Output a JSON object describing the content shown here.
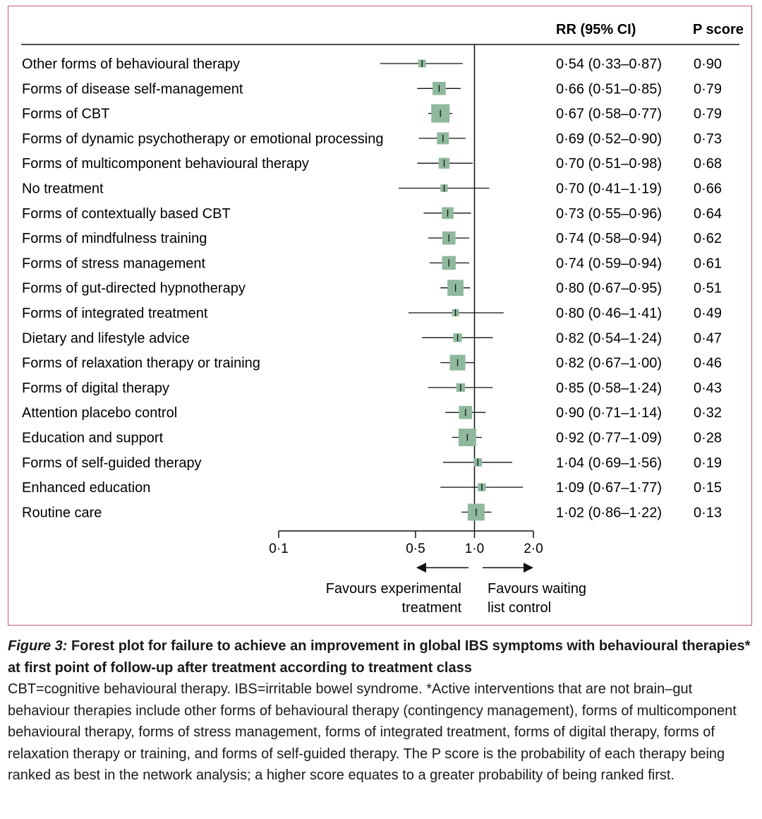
{
  "chart_data": {
    "type": "forest",
    "xscale": "log",
    "xlim": [
      0.1,
      2.0
    ],
    "xticks": [
      0.1,
      0.5,
      1.0,
      2.0
    ],
    "tick_labels": [
      "0·1",
      "0·5",
      "1·0",
      "2·0"
    ],
    "reference_line": 1.0,
    "column_headers": {
      "estimate": "RR (95% CI)",
      "score": "P score"
    },
    "direction_labels": {
      "left_line1": "Favours experimental",
      "left_line2": "treatment",
      "right_line1": "Favours waiting",
      "right_line2": "list control"
    },
    "rows": [
      {
        "label": "Other forms of behavioural therapy",
        "rr": 0.54,
        "lo": 0.33,
        "hi": 0.87,
        "text": "0·54 (0·33–0·87)",
        "p": "0·90",
        "weight": 0.06
      },
      {
        "label": "Forms of disease self-management",
        "rr": 0.66,
        "lo": 0.51,
        "hi": 0.85,
        "text": "0·66 (0·51–0·85)",
        "p": "0·79",
        "weight": 0.4
      },
      {
        "label": "Forms of CBT",
        "rr": 0.67,
        "lo": 0.58,
        "hi": 0.77,
        "text": "0·67 (0·58–0·77)",
        "p": "0·79",
        "weight": 1.0
      },
      {
        "label": "Forms of dynamic psychotherapy or emotional processing",
        "rr": 0.69,
        "lo": 0.52,
        "hi": 0.9,
        "text": "0·69 (0·52–0·90)",
        "p": "0·73",
        "weight": 0.3
      },
      {
        "label": "Forms of multicomponent behavioural therapy",
        "rr": 0.7,
        "lo": 0.51,
        "hi": 0.98,
        "text": "0·70 (0·51–0·98)",
        "p": "0·68",
        "weight": 0.22
      },
      {
        "label": "No treatment",
        "rr": 0.7,
        "lo": 0.41,
        "hi": 1.19,
        "text": "0·70 (0·41–1·19)",
        "p": "0·66",
        "weight": 0.05
      },
      {
        "label": "Forms of contextually based CBT",
        "rr": 0.73,
        "lo": 0.55,
        "hi": 0.96,
        "text": "0·73 (0·55–0·96)",
        "p": "0·64",
        "weight": 0.28
      },
      {
        "label": "Forms of mindfulness training",
        "rr": 0.74,
        "lo": 0.58,
        "hi": 0.94,
        "text": "0·74 (0·58–0·94)",
        "p": "0·62",
        "weight": 0.4
      },
      {
        "label": "Forms of stress management",
        "rr": 0.74,
        "lo": 0.59,
        "hi": 0.94,
        "text": "0·74 (0·59–0·94)",
        "p": "0·61",
        "weight": 0.45
      },
      {
        "label": "Forms of gut-directed hypnotherapy",
        "rr": 0.8,
        "lo": 0.67,
        "hi": 0.95,
        "text": "0·80 (0·67–0·95)",
        "p": "0·51",
        "weight": 0.7
      },
      {
        "label": "Forms of integrated treatment",
        "rr": 0.8,
        "lo": 0.46,
        "hi": 1.41,
        "text": "0·80 (0·46–1·41)",
        "p": "0·49",
        "weight": 0.04
      },
      {
        "label": "Dietary and lifestyle advice",
        "rr": 0.82,
        "lo": 0.54,
        "hi": 1.24,
        "text": "0·82 (0·54–1·24)",
        "p": "0·47",
        "weight": 0.1
      },
      {
        "label": "Forms of relaxation therapy or training",
        "rr": 0.82,
        "lo": 0.67,
        "hi": 1.0,
        "text": "0·82 (0·67–1·00)",
        "p": "0·46",
        "weight": 0.65
      },
      {
        "label": "Forms of digital therapy",
        "rr": 0.85,
        "lo": 0.58,
        "hi": 1.24,
        "text": "0·85 (0·58–1·24)",
        "p": "0·43",
        "weight": 0.1
      },
      {
        "label": "Attention placebo control",
        "rr": 0.9,
        "lo": 0.71,
        "hi": 1.14,
        "text": "0·90 (0·71–1·14)",
        "p": "0·32",
        "weight": 0.4
      },
      {
        "label": "Education and support",
        "rr": 0.92,
        "lo": 0.77,
        "hi": 1.09,
        "text": "0·92 (0·77–1·09)",
        "p": "0·28",
        "weight": 0.9
      },
      {
        "label": "Forms of self-guided therapy",
        "rr": 1.04,
        "lo": 0.69,
        "hi": 1.56,
        "text": "1·04 (0·69–1·56)",
        "p": "0·19",
        "weight": 0.08
      },
      {
        "label": "Enhanced education",
        "rr": 1.09,
        "lo": 0.67,
        "hi": 1.77,
        "text": "1·09 (0·67–1·77)",
        "p": "0·15",
        "weight": 0.07
      },
      {
        "label": "Routine care",
        "rr": 1.02,
        "lo": 0.86,
        "hi": 1.22,
        "text": "1·02 (0·86–1·22)",
        "p": "0·13",
        "weight": 0.8
      }
    ],
    "colors": {
      "square": "#8fb89d",
      "line": "#111111",
      "frame": "#c0587e"
    }
  },
  "caption": {
    "figure_label": "Figure 3:",
    "title": "Forest plot for failure to achieve an improvement in global IBS symptoms with behavioural therapies* at first point of follow-up after treatment according to treatment class",
    "body": "CBT=cognitive behavioural therapy. IBS=irritable bowel syndrome. *Active interventions that are not brain–gut behaviour therapies include other forms of behavioural therapy (contingency management), forms of multicomponent behavioural therapy, forms of stress management, forms of integrated treatment, forms of digital therapy, forms of relaxation therapy or training, and forms of self-guided therapy. The P score is the probability of each therapy being ranked as best in the network analysis; a higher score equates to a greater probability of being ranked first."
  }
}
